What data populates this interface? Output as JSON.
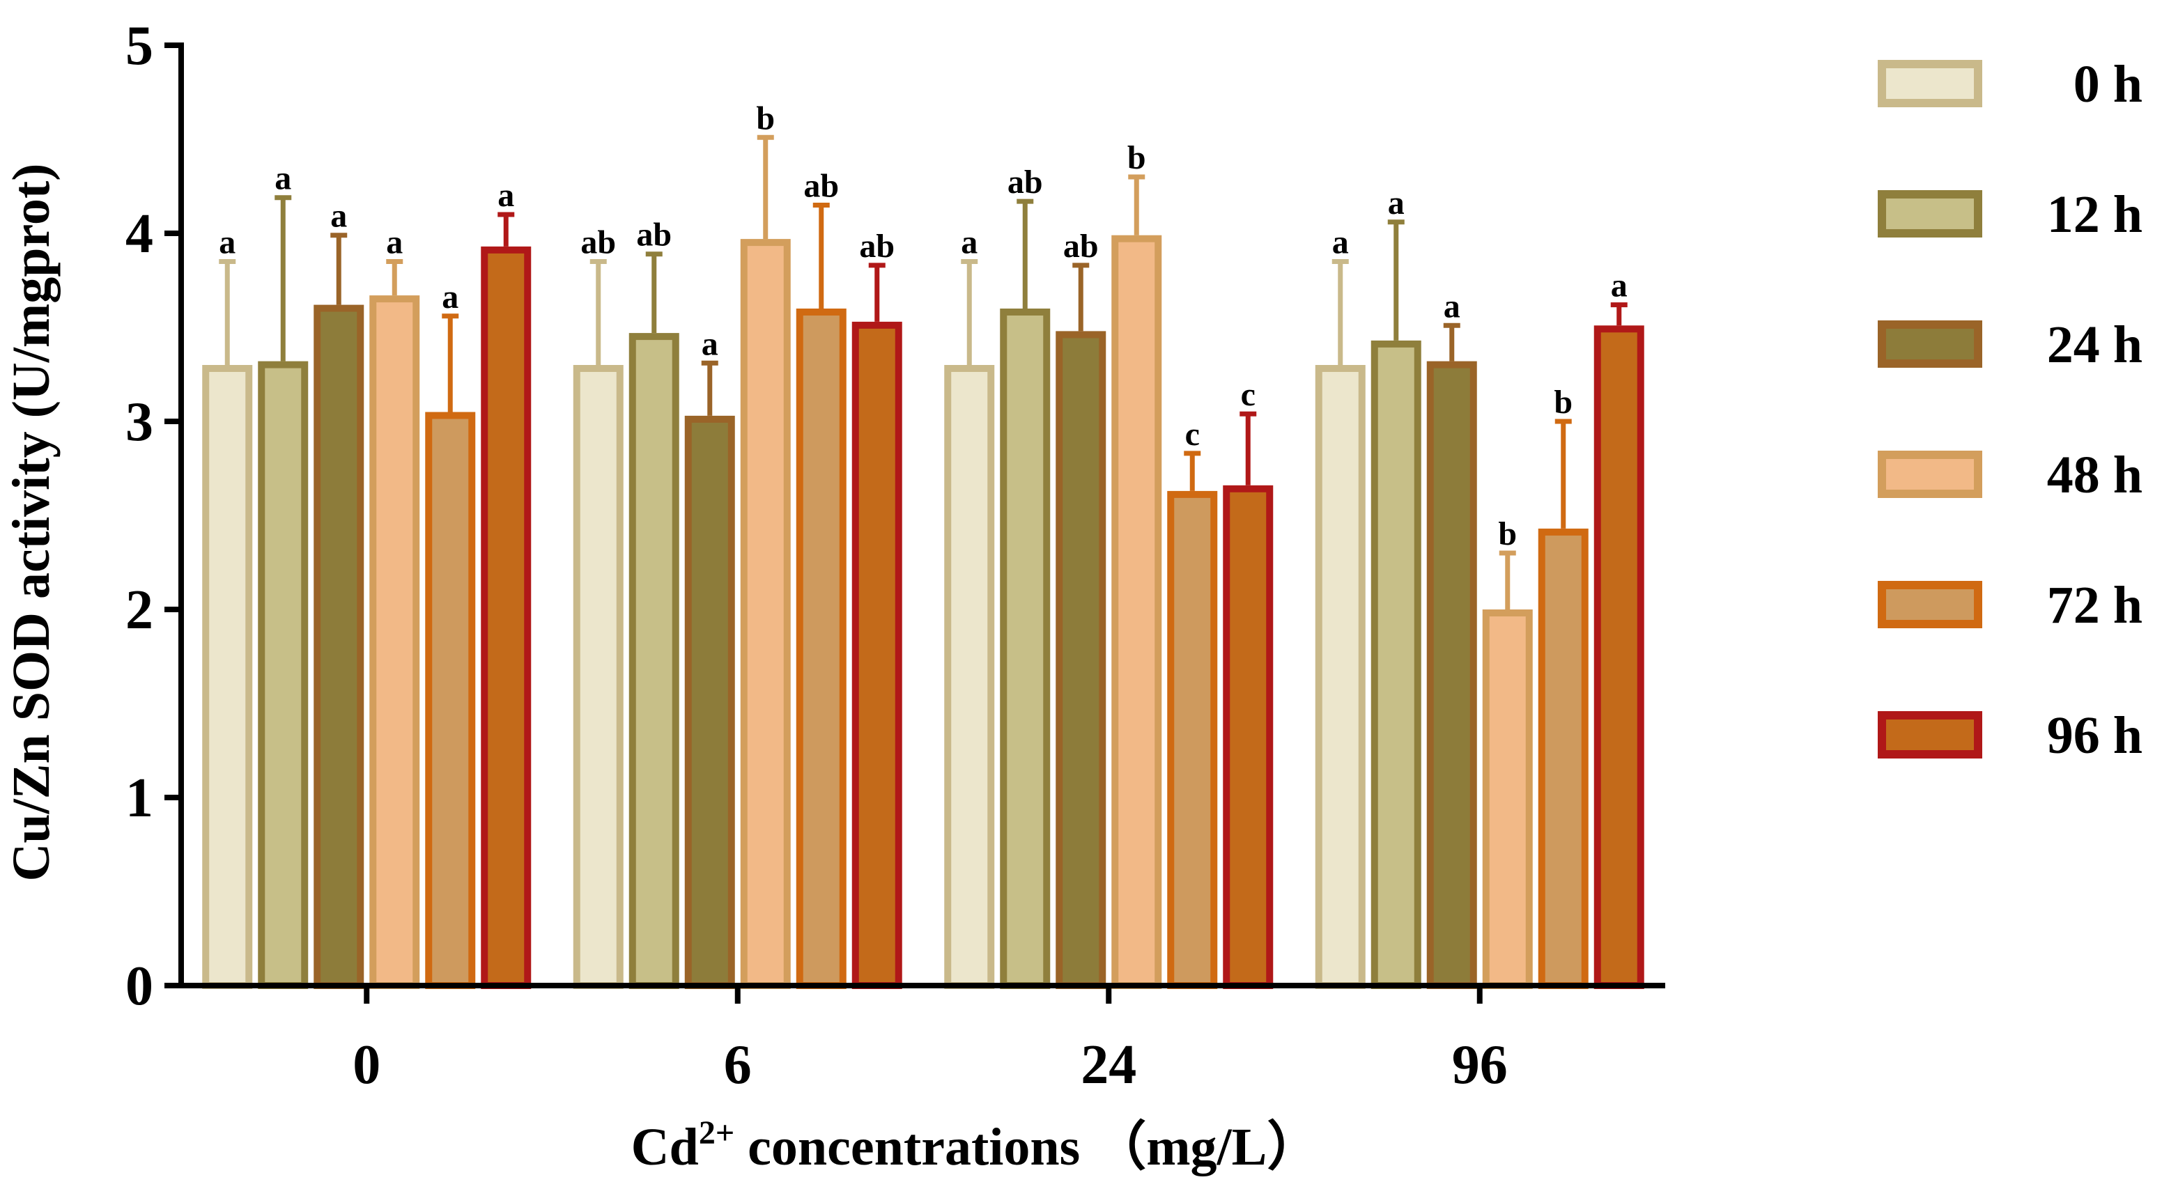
{
  "chart_data": {
    "type": "bar",
    "title": "",
    "ylabel": "Cu/Zn SOD activity (U/mgprot)",
    "xlabel": {
      "prefix": "Cd",
      "superscript": "2+",
      "suffix": " concentrations （mg/L）"
    },
    "ylim": [
      0,
      5
    ],
    "yticks": [
      "0",
      "1",
      "2",
      "3",
      "4",
      "5"
    ],
    "categories": [
      "0",
      "6",
      "24",
      "96"
    ],
    "legend_position": "right",
    "series": [
      {
        "name": "0 h",
        "fill": "#ece6cc",
        "stroke": "#c9b98a",
        "values": [
          3.3,
          3.3,
          3.3,
          3.3
        ],
        "errors": [
          0.55,
          0.55,
          0.55,
          0.55
        ],
        "labels": [
          "a",
          "ab",
          "a",
          "a"
        ]
      },
      {
        "name": "12 h",
        "fill": "#c7bf88",
        "stroke": "#8f7f3c",
        "values": [
          3.32,
          3.47,
          3.6,
          3.43
        ],
        "errors": [
          0.87,
          0.42,
          0.57,
          0.63
        ],
        "labels": [
          "a",
          "ab",
          "ab",
          "a"
        ]
      },
      {
        "name": "24 h",
        "fill": "#8d7c3a",
        "stroke": "#9a6428",
        "values": [
          3.62,
          3.03,
          3.48,
          3.32
        ],
        "errors": [
          0.37,
          0.28,
          0.35,
          0.19
        ],
        "labels": [
          "a",
          "a",
          "ab",
          "a"
        ]
      },
      {
        "name": "48 h",
        "fill": "#f2b987",
        "stroke": "#d39e5c",
        "values": [
          3.67,
          3.97,
          3.99,
          2.0
        ],
        "errors": [
          0.18,
          0.54,
          0.31,
          0.3
        ],
        "labels": [
          "a",
          "b",
          "b",
          "b"
        ]
      },
      {
        "name": "72 h",
        "fill": "#ce9a5e",
        "stroke": "#d06a12",
        "values": [
          3.05,
          3.6,
          2.63,
          2.43
        ],
        "errors": [
          0.51,
          0.55,
          0.2,
          0.57
        ],
        "labels": [
          "a",
          "ab",
          "c",
          "b"
        ]
      },
      {
        "name": "96 h",
        "fill": "#c36a1a",
        "stroke": "#b01818",
        "values": [
          3.93,
          3.53,
          2.66,
          3.51
        ],
        "errors": [
          0.17,
          0.3,
          0.38,
          0.11
        ],
        "labels": [
          "a",
          "ab",
          "c",
          "a"
        ]
      }
    ]
  }
}
